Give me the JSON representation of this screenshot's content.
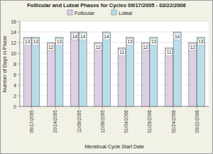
{
  "chart_data": {
    "type": "bar",
    "title": "Follicular and Luteal Phases for Cycles 09/17/2005 - 03/22/2006",
    "x_label": "Menstrual Cycle Start Date",
    "y_label": "Number of Days in Phase",
    "categories": [
      "09/17/2005",
      "10/14/2005",
      "11/09/2005",
      "12/08/2005",
      "01/04/2006",
      "01/29/2006",
      "02/24/2006",
      "03/22/2006"
    ],
    "series": [
      {
        "name": "Follicular",
        "color": "#ddd0e6",
        "values": [
          13,
          12,
          14,
          12,
          11,
          12,
          11,
          12
        ]
      },
      {
        "name": "Luteal",
        "color": "#b9dee9",
        "values": [
          13,
          13,
          14,
          14,
          13,
          13,
          14,
          13
        ]
      }
    ],
    "ylim": [
      0,
      16
    ],
    "yticks": [
      0,
      2,
      4,
      6,
      8,
      10,
      12,
      14,
      16
    ],
    "grid": true,
    "legend": "top",
    "data_labels": true
  }
}
